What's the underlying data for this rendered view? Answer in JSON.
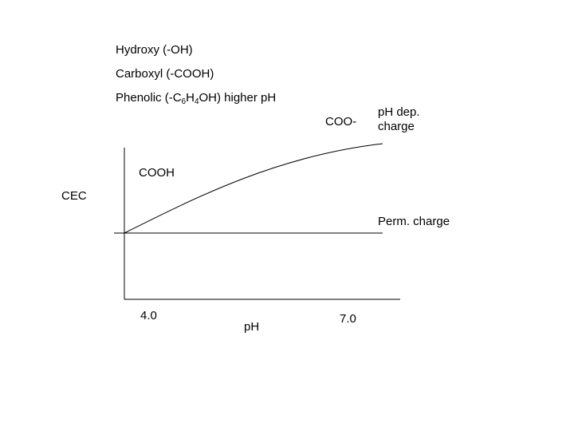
{
  "groups": {
    "hydroxy": "Hydroxy (-OH)",
    "carboxyl": "Carboxyl (-COOH)",
    "phenolic": {
      "prefix": "Phenolic (-C",
      "sub1": "6",
      "mid": "H",
      "sub2": "4",
      "suffix": "OH) higher pH"
    }
  },
  "labels": {
    "coo_minus": "COO-",
    "ph_dep_line1": "pH dep.",
    "ph_dep_line2": "charge",
    "cooh": "COOH",
    "cec": "CEC",
    "perm_charge": "Perm. charge",
    "tick_4": "4.0",
    "tick_7": "7.0",
    "x_axis": "pH"
  },
  "colors": {
    "line": "#000000"
  }
}
